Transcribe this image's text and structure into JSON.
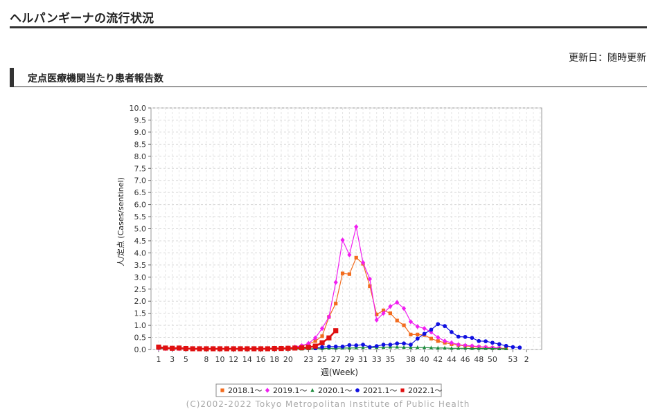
{
  "page": {
    "title": "ヘルパンギーナの流行状況",
    "updated": "更新日：随時更新",
    "section_title": "定点医療機関当たり患者報告数",
    "copyright": "(C)2002-2022 Tokyo Metropolitan Institute of Public Health"
  },
  "chart_data": {
    "type": "line",
    "title": "",
    "xlabel": "週(Week)",
    "ylabel": "人/定点 (Cases/sentinel)",
    "ylim": [
      0,
      10
    ],
    "yticks": [
      "0.0",
      "0.5",
      "1.0",
      "1.5",
      "2.0",
      "2.5",
      "3.0",
      "3.5",
      "4.0",
      "4.5",
      "5.0",
      "5.5",
      "6.0",
      "6.5",
      "7.0",
      "7.5",
      "8.0",
      "8.5",
      "9.0",
      "9.5",
      "10.0"
    ],
    "xticks": [
      "1",
      "3",
      "5",
      "8",
      "10",
      "12",
      "14",
      "16",
      "18",
      "20",
      "23",
      "25",
      "27",
      "29",
      "31",
      "33",
      "35",
      "38",
      "40",
      "42",
      "44",
      "46",
      "48",
      "50",
      "53",
      "2"
    ],
    "grid": true,
    "legend_position": "bottom",
    "series": [
      {
        "name": "2018.1～",
        "color": "#f26b1d",
        "marker": "square",
        "values": [
          0.07,
          0.05,
          0.04,
          0.04,
          0.03,
          0.03,
          0.03,
          0.03,
          0.03,
          0.03,
          0.03,
          0.03,
          0.03,
          0.03,
          0.03,
          0.03,
          0.03,
          0.04,
          0.05,
          0.06,
          0.08,
          0.14,
          0.22,
          0.35,
          0.55,
          1.35,
          1.9,
          3.15,
          3.12,
          3.8,
          3.55,
          2.62,
          1.45,
          1.62,
          1.5,
          1.2,
          1.0,
          0.62,
          0.62,
          0.6,
          0.45,
          0.35,
          0.28,
          0.22,
          0.18,
          0.15,
          0.12,
          0.1,
          0.08,
          0.06,
          0.05,
          0.05
        ]
      },
      {
        "name": "2019.1～",
        "color": "#f01ef0",
        "marker": "diamond",
        "values": [
          0.05,
          0.04,
          0.03,
          0.03,
          0.03,
          0.03,
          0.03,
          0.03,
          0.03,
          0.03,
          0.03,
          0.03,
          0.03,
          0.03,
          0.03,
          0.03,
          0.03,
          0.03,
          0.04,
          0.06,
          0.1,
          0.16,
          0.25,
          0.48,
          0.87,
          1.35,
          2.78,
          4.53,
          3.92,
          5.08,
          3.6,
          2.92,
          1.22,
          1.5,
          1.78,
          1.95,
          1.7,
          1.15,
          0.95,
          0.87,
          0.72,
          0.5,
          0.35,
          0.28,
          0.2,
          0.17,
          0.15,
          0.12,
          0.1,
          0.08,
          0.06
        ]
      },
      {
        "name": "2020.1～",
        "color": "#1a8a3a",
        "marker": "triangle",
        "values": [
          0.05,
          0.05,
          0.04,
          0.06,
          0.03,
          0.03,
          0.02,
          0.02,
          0.02,
          0.02,
          0.02,
          0.02,
          0.02,
          0.02,
          0.02,
          0.02,
          0.02,
          0.02,
          0.02,
          0.02,
          0.02,
          0.02,
          0.03,
          0.03,
          0.04,
          0.05,
          0.05,
          0.06,
          0.06,
          0.07,
          0.08,
          0.08,
          0.08,
          0.09,
          0.1,
          0.1,
          0.09,
          0.08,
          0.08,
          0.08,
          0.07,
          0.06,
          0.06,
          0.05,
          0.05,
          0.05,
          0.04,
          0.04,
          0.04,
          0.04,
          0.03,
          0.03
        ]
      },
      {
        "name": "2021.1～",
        "color": "#1010e0",
        "marker": "circle",
        "values": [
          null,
          null,
          null,
          null,
          null,
          null,
          null,
          null,
          null,
          null,
          null,
          null,
          null,
          null,
          null,
          null,
          null,
          null,
          null,
          null,
          null,
          null,
          null,
          0.05,
          0.1,
          0.12,
          0.12,
          0.12,
          0.18,
          0.17,
          0.2,
          0.1,
          0.14,
          0.2,
          0.2,
          0.25,
          0.25,
          0.2,
          0.45,
          0.65,
          0.82,
          1.05,
          0.97,
          0.72,
          0.53,
          0.52,
          0.48,
          0.35,
          0.34,
          0.28,
          0.22,
          0.15,
          0.1,
          0.08
        ]
      },
      {
        "name": "2022.1～",
        "color": "#e01010",
        "marker": "square",
        "values": [
          0.1,
          0.06,
          0.05,
          0.06,
          0.04,
          0.03,
          0.03,
          0.03,
          0.03,
          0.03,
          0.03,
          0.03,
          0.03,
          0.03,
          0.03,
          0.03,
          0.03,
          0.04,
          0.04,
          0.05,
          0.06,
          0.07,
          0.09,
          0.14,
          0.28,
          0.48,
          0.78
        ]
      }
    ]
  }
}
